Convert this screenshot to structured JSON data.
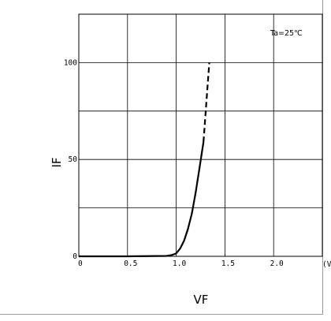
{
  "chart_data": {
    "type": "line",
    "title": "",
    "xlabel": "VF",
    "ylabel": "IF",
    "xlim": [
      0,
      2.5
    ],
    "ylim": [
      0,
      125
    ],
    "grid": true,
    "annotation": "Ta=25℃",
    "x_ticks": [
      {
        "value": 0,
        "label": "0"
      },
      {
        "value": 0.5,
        "label": "0.5"
      },
      {
        "value": 1.0,
        "label": "1.0"
      },
      {
        "value": 1.5,
        "label": "1.5"
      },
      {
        "value": 2.0,
        "label": "2.0"
      }
    ],
    "x_unit_fragment": "(V",
    "y_ticks": [
      {
        "value": 0,
        "label": "0"
      },
      {
        "value": 50,
        "label": "50"
      },
      {
        "value": 100,
        "label": "100"
      }
    ],
    "series": [
      {
        "style": "solid",
        "color": "#000000",
        "x": [
          0,
          0.5,
          0.9,
          0.95,
          1.0,
          1.04,
          1.08,
          1.12,
          1.16,
          1.2,
          1.24,
          1.28
        ],
        "y": [
          0,
          0,
          0.2,
          0.6,
          1.5,
          4,
          8,
          14,
          22,
          33,
          46,
          59
        ]
      },
      {
        "style": "dashed",
        "color": "#000000",
        "x": [
          1.28,
          1.3,
          1.32,
          1.34
        ],
        "y": [
          59,
          73,
          87,
          100
        ]
      }
    ]
  }
}
